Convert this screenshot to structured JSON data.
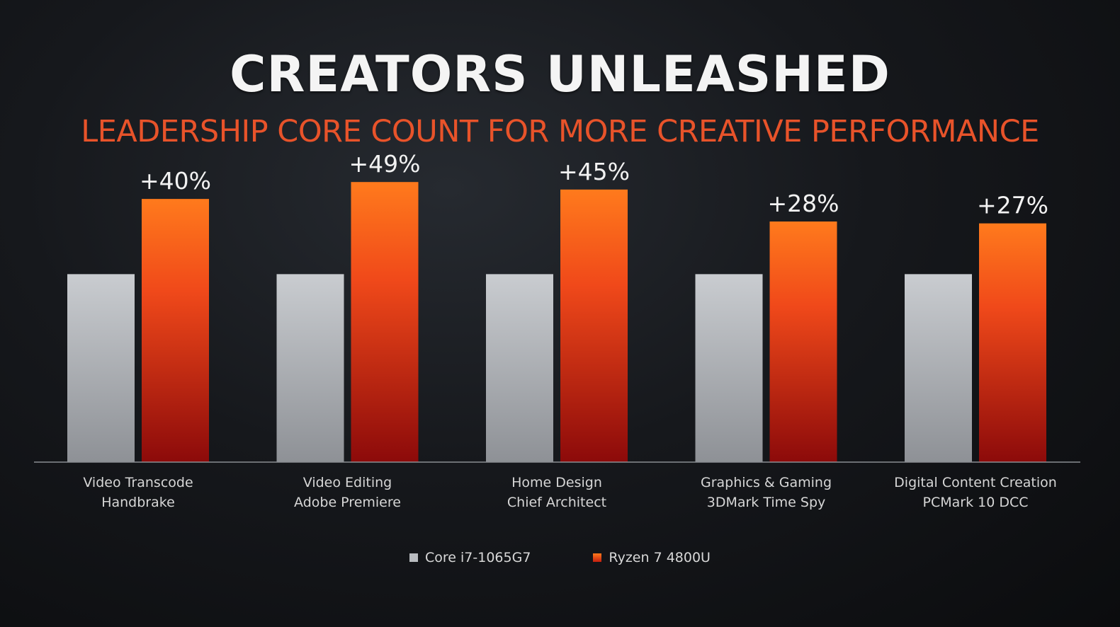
{
  "title": "CREATORS UNLEASHED",
  "subtitle": "LEADERSHIP CORE COUNT FOR MORE CREATIVE PERFORMANCE",
  "colors": {
    "baseline": "#b9bcc0",
    "ryzen_top": "#ff7a1c",
    "ryzen_bottom": "#8c0a0a",
    "subtitle": "#e8532a"
  },
  "legend": [
    {
      "label": "Core i7-1065G7",
      "color": "#b9bcc0"
    },
    {
      "label": "Ryzen 7 4800U",
      "color": "#f05a16"
    }
  ],
  "chart_data": {
    "type": "bar",
    "categories": [
      [
        "Video Transcode",
        "Handbrake"
      ],
      [
        "Video Editing",
        "Adobe Premiere"
      ],
      [
        "Home Design",
        "Chief Architect"
      ],
      [
        "Graphics & Gaming",
        "3DMark Time Spy"
      ],
      [
        "Digital Content Creation",
        "PCMark 10 DCC"
      ]
    ],
    "series": [
      {
        "name": "Core i7-1065G7",
        "values": [
          100,
          100,
          100,
          100,
          100
        ]
      },
      {
        "name": "Ryzen 7 4800U",
        "values": [
          140,
          149,
          145,
          128,
          127
        ]
      }
    ],
    "data_labels": [
      "+40%",
      "+49%",
      "+45%",
      "+28%",
      "+27%"
    ],
    "ylim": [
      0,
      160
    ],
    "grid": false,
    "legend_position": "bottom-center"
  }
}
